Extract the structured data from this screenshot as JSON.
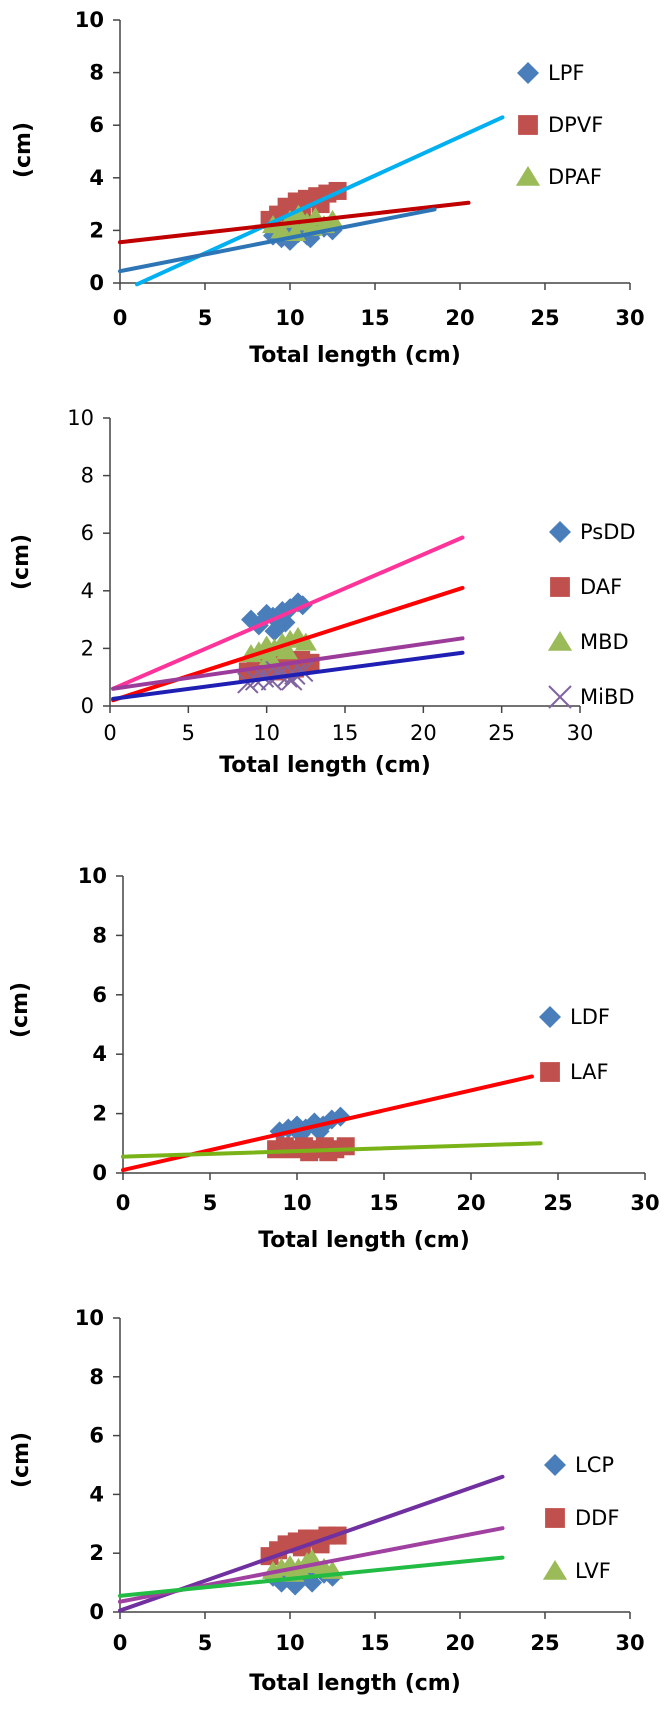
{
  "chart_data": [
    {
      "type": "scatter",
      "xlabel": "Total length (cm)",
      "ylabel": "(cm)",
      "xlim": [
        0,
        30
      ],
      "ylim": [
        0,
        10
      ],
      "xticks": [
        "0",
        "5",
        "10",
        "15",
        "20",
        "25",
        "30"
      ],
      "yticks": [
        "0",
        "2",
        "4",
        "6",
        "8",
        "10"
      ],
      "tick_style": "bold",
      "legend_position": "right",
      "series": [
        {
          "name": "LPF",
          "marker": "diamond",
          "color": "#4A7EBB",
          "points": [
            [
              9,
              1.8
            ],
            [
              9.5,
              1.7
            ],
            [
              10,
              1.6
            ],
            [
              10.5,
              1.9
            ],
            [
              11,
              1.8
            ],
            [
              11.5,
              2.0
            ],
            [
              12,
              2.1
            ],
            [
              12.5,
              2.0
            ],
            [
              10.2,
              2.1
            ],
            [
              11.2,
              1.7
            ]
          ]
        },
        {
          "name": "DPVF",
          "marker": "square",
          "color": "#C0504D",
          "points": [
            [
              8.8,
              2.4
            ],
            [
              9.3,
              2.6
            ],
            [
              9.8,
              2.9
            ],
            [
              10.4,
              3.1
            ],
            [
              11,
              3.2
            ],
            [
              11.6,
              3.3
            ],
            [
              12.2,
              3.4
            ],
            [
              12.8,
              3.5
            ],
            [
              10.7,
              2.8
            ],
            [
              11.8,
              3.0
            ]
          ]
        },
        {
          "name": "DPAF",
          "marker": "triangle",
          "color": "#9BBB59",
          "points": [
            [
              9,
              2.2
            ],
            [
              9.5,
              2.0
            ],
            [
              10,
              2.4
            ],
            [
              10.5,
              2.6
            ],
            [
              11,
              2.3
            ],
            [
              11.5,
              2.5
            ],
            [
              12,
              2.2
            ],
            [
              12.5,
              2.4
            ],
            [
              10.3,
              1.9
            ],
            [
              11.3,
              2.1
            ]
          ]
        }
      ],
      "trendlines": [
        {
          "color": "#00B0F0",
          "x": [
            1,
            22.5
          ],
          "y": [
            -0.05,
            6.3
          ]
        },
        {
          "color": "#C00000",
          "x": [
            0,
            20.5
          ],
          "y": [
            1.55,
            3.05
          ]
        },
        {
          "color": "#2E75B6",
          "x": [
            0,
            18.5
          ],
          "y": [
            0.45,
            2.8
          ]
        }
      ]
    },
    {
      "type": "scatter",
      "xlabel": "Total length (cm)",
      "ylabel": "(cm)",
      "xlim": [
        0,
        30
      ],
      "ylim": [
        0,
        10
      ],
      "xticks": [
        "0",
        "5",
        "10",
        "15",
        "20",
        "25",
        "30"
      ],
      "yticks": [
        "0",
        "2",
        "4",
        "6",
        "8",
        "10"
      ],
      "tick_style": "plain",
      "legend_position": "right",
      "series": [
        {
          "name": "PsDD",
          "marker": "diamond",
          "color": "#4A7EBB",
          "points": [
            [
              9,
              3.0
            ],
            [
              9.5,
              2.8
            ],
            [
              10,
              3.2
            ],
            [
              10.5,
              2.6
            ],
            [
              11,
              3.3
            ],
            [
              11.5,
              3.4
            ],
            [
              12,
              3.6
            ],
            [
              12.3,
              3.5
            ],
            [
              10.4,
              3.1
            ],
            [
              11.2,
              2.9
            ]
          ]
        },
        {
          "name": "DAF",
          "marker": "square",
          "color": "#C0504D",
          "points": [
            [
              8.8,
              1.2
            ],
            [
              9.3,
              1.3
            ],
            [
              9.8,
              1.4
            ],
            [
              10.4,
              1.3
            ],
            [
              11,
              1.5
            ],
            [
              11.6,
              1.4
            ],
            [
              12.2,
              1.6
            ],
            [
              12.8,
              1.5
            ],
            [
              10.7,
              1.2
            ],
            [
              11.8,
              1.3
            ]
          ]
        },
        {
          "name": "MBD",
          "marker": "triangle",
          "color": "#9BBB59",
          "points": [
            [
              9,
              1.8
            ],
            [
              9.5,
              1.9
            ],
            [
              10,
              2.1
            ],
            [
              10.5,
              2.0
            ],
            [
              11,
              2.2
            ],
            [
              11.5,
              2.3
            ],
            [
              12,
              2.4
            ],
            [
              12.5,
              2.2
            ],
            [
              10.2,
              1.7
            ],
            [
              11.3,
              1.9
            ]
          ]
        },
        {
          "name": "MiBD",
          "marker": "x",
          "color": "#8064A2",
          "points": [
            [
              8.8,
              0.8
            ],
            [
              9.3,
              0.9
            ],
            [
              9.8,
              1.0
            ],
            [
              10.3,
              0.9
            ],
            [
              10.8,
              1.1
            ],
            [
              11.3,
              1.0
            ],
            [
              11.8,
              1.1
            ],
            [
              12.3,
              1.2
            ],
            [
              10.6,
              1.2
            ],
            [
              11.6,
              0.9
            ]
          ]
        }
      ],
      "trendlines": [
        {
          "color": "#FF3399",
          "x": [
            0.2,
            22.5
          ],
          "y": [
            0.6,
            5.85
          ]
        },
        {
          "color": "#FF0000",
          "x": [
            0.2,
            22.5
          ],
          "y": [
            0.2,
            4.1
          ]
        },
        {
          "color": "#9B3C9B",
          "x": [
            0.2,
            22.5
          ],
          "y": [
            0.6,
            2.35
          ]
        },
        {
          "color": "#1F1FB4",
          "x": [
            0.2,
            22.5
          ],
          "y": [
            0.25,
            1.85
          ]
        }
      ]
    },
    {
      "type": "scatter",
      "xlabel": "Total length (cm)",
      "ylabel": "(cm)",
      "xlim": [
        0,
        30
      ],
      "ylim": [
        0,
        10
      ],
      "xticks": [
        "0",
        "5",
        "10",
        "15",
        "20",
        "25",
        "30"
      ],
      "yticks": [
        "0",
        "2",
        "4",
        "6",
        "8",
        "10"
      ],
      "tick_style": "bold",
      "legend_position": "right",
      "series": [
        {
          "name": "LDF",
          "marker": "diamond",
          "color": "#4A7EBB",
          "points": [
            [
              9,
              1.4
            ],
            [
              9.5,
              1.5
            ],
            [
              10,
              1.6
            ],
            [
              10.5,
              1.5
            ],
            [
              11,
              1.7
            ],
            [
              11.5,
              1.6
            ],
            [
              12,
              1.8
            ],
            [
              12.5,
              1.9
            ],
            [
              10.2,
              1.3
            ],
            [
              11.3,
              1.4
            ]
          ]
        },
        {
          "name": "LAF",
          "marker": "square",
          "color": "#C0504D",
          "points": [
            [
              8.8,
              0.8
            ],
            [
              9.3,
              0.9
            ],
            [
              9.8,
              0.8
            ],
            [
              10.4,
              0.9
            ],
            [
              11,
              0.8
            ],
            [
              11.6,
              0.9
            ],
            [
              12.2,
              0.8
            ],
            [
              12.8,
              0.9
            ],
            [
              10.7,
              0.7
            ],
            [
              11.8,
              0.7
            ]
          ]
        }
      ],
      "trendlines": [
        {
          "color": "#FF0000",
          "x": [
            0,
            23.5
          ],
          "y": [
            0.1,
            3.25
          ]
        },
        {
          "color": "#7AB317",
          "x": [
            0,
            24
          ],
          "y": [
            0.55,
            1.0
          ]
        }
      ]
    },
    {
      "type": "scatter",
      "xlabel": "Total length (cm)",
      "ylabel": "(cm)",
      "xlim": [
        0,
        30
      ],
      "ylim": [
        0,
        10
      ],
      "xticks": [
        "0",
        "5",
        "10",
        "15",
        "20",
        "25",
        "30"
      ],
      "yticks": [
        "0",
        "2",
        "4",
        "6",
        "8",
        "10"
      ],
      "tick_style": "bold",
      "legend_position": "right",
      "series": [
        {
          "name": "LCP",
          "marker": "diamond",
          "color": "#4A7EBB",
          "points": [
            [
              9,
              1.2
            ],
            [
              9.5,
              1.0
            ],
            [
              10,
              1.3
            ],
            [
              10.5,
              1.1
            ],
            [
              11,
              1.2
            ],
            [
              11.5,
              1.4
            ],
            [
              12,
              1.3
            ],
            [
              12.5,
              1.2
            ],
            [
              10.3,
              0.9
            ],
            [
              11.3,
              1.0
            ]
          ]
        },
        {
          "name": "DDF",
          "marker": "square",
          "color": "#C0504D",
          "points": [
            [
              8.8,
              1.9
            ],
            [
              9.3,
              2.1
            ],
            [
              9.8,
              2.3
            ],
            [
              10.4,
              2.4
            ],
            [
              11,
              2.5
            ],
            [
              11.6,
              2.5
            ],
            [
              12.2,
              2.6
            ],
            [
              12.8,
              2.6
            ],
            [
              10.7,
              2.2
            ],
            [
              11.8,
              2.3
            ]
          ]
        },
        {
          "name": "LVF",
          "marker": "triangle",
          "color": "#9BBB59",
          "points": [
            [
              9,
              1.4
            ],
            [
              9.5,
              1.5
            ],
            [
              10,
              1.6
            ],
            [
              10.5,
              1.5
            ],
            [
              11,
              1.7
            ],
            [
              11.5,
              1.6
            ],
            [
              12,
              1.5
            ],
            [
              12.5,
              1.4
            ],
            [
              10.2,
              1.3
            ],
            [
              11.3,
              1.8
            ]
          ]
        }
      ],
      "trendlines": [
        {
          "color": "#7030A0",
          "x": [
            0,
            22.5
          ],
          "y": [
            0.05,
            4.6
          ]
        },
        {
          "color": "#A040A0",
          "x": [
            0,
            22.5
          ],
          "y": [
            0.35,
            2.85
          ]
        },
        {
          "color": "#22BB44",
          "x": [
            0,
            22.5
          ],
          "y": [
            0.55,
            1.85
          ]
        }
      ]
    }
  ]
}
